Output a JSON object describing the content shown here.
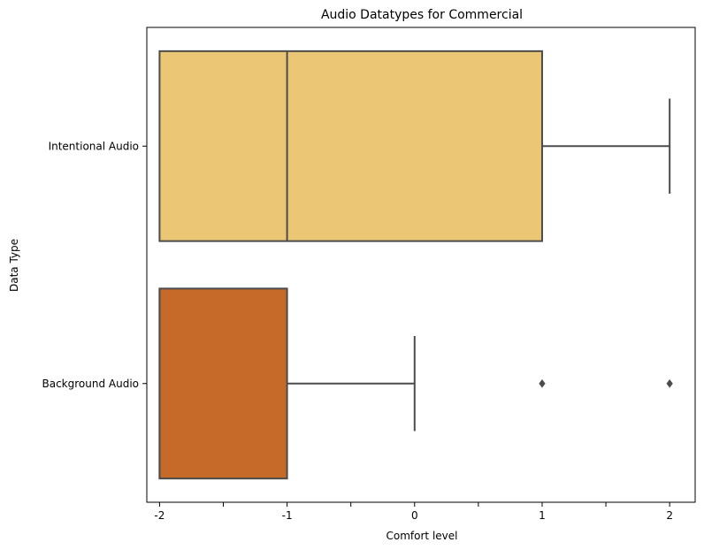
{
  "chart_data": {
    "type": "box",
    "orientation": "horizontal",
    "title": "Audio Datatypes for Commercial",
    "xlabel": "Comfort level",
    "ylabel": "Data Type",
    "xlim": [
      -2.1,
      2.2
    ],
    "x_ticks": [
      -2,
      -1.5,
      -1,
      -0.5,
      0,
      0.5,
      1,
      1.5,
      2
    ],
    "x_tick_labels": [
      "-2",
      "",
      "-1",
      "",
      "0",
      "",
      "1",
      "",
      "2"
    ],
    "grid": false,
    "categories": [
      "Intentional Audio",
      "Background Audio"
    ],
    "series": [
      {
        "category": "Intentional Audio",
        "color": "#EBC775",
        "whisker_low": -2,
        "q1": -2,
        "median": -1,
        "q3": 1,
        "whisker_high": 2,
        "outliers": []
      },
      {
        "category": "Background Audio",
        "color": "#C66A29",
        "whisker_low": -2,
        "q1": -2,
        "median": -2,
        "q3": -1,
        "whisker_high": 0,
        "outliers": [
          1,
          2
        ]
      }
    ]
  },
  "colors": {
    "line": "#4c4c4c",
    "axes": "#000000"
  }
}
